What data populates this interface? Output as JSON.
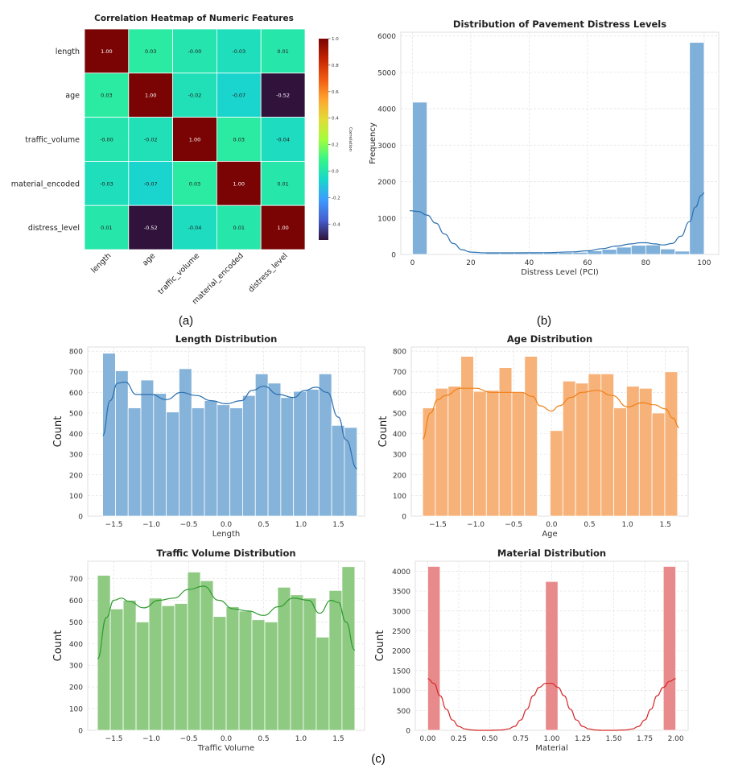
{
  "figure_labels": {
    "a": "(a)",
    "b": "(b)",
    "c": "(c)"
  },
  "chart_data": [
    {
      "id": "heatmap",
      "type": "heatmap",
      "title": "Correlation Heatmap of Numeric Features",
      "row_labels": [
        "length",
        "age",
        "traffic_volume",
        "material_encoded",
        "distress_level"
      ],
      "col_labels": [
        "length",
        "age",
        "traffic_volume",
        "material_encoded",
        "distress_level"
      ],
      "values": [
        [
          1.0,
          0.03,
          -0.0,
          -0.03,
          0.01
        ],
        [
          0.03,
          1.0,
          -0.02,
          -0.07,
          -0.52
        ],
        [
          -0.0,
          -0.02,
          1.0,
          0.03,
          -0.04
        ],
        [
          -0.03,
          -0.07,
          0.03,
          1.0,
          0.01
        ],
        [
          0.01,
          -0.52,
          -0.04,
          0.01,
          1.0
        ]
      ],
      "cell_text": [
        [
          "1.00",
          "0.03",
          "-0.00",
          "-0.03",
          "0.01"
        ],
        [
          "0.03",
          "1.00",
          "-0.02",
          "-0.07",
          "-0.52"
        ],
        [
          "-0.00",
          "-0.02",
          "1.00",
          "0.03",
          "-0.04"
        ],
        [
          "-0.03",
          "-0.07",
          "0.03",
          "1.00",
          "0.01"
        ],
        [
          "0.01",
          "-0.52",
          "-0.04",
          "0.01",
          "1.00"
        ]
      ],
      "colorbar": {
        "label": "Correlation",
        "min": -0.52,
        "max": 1.0,
        "ticks": [
          "1.0",
          "0.8",
          "0.6",
          "0.4",
          "0.2",
          "0.0",
          "-0.2",
          "-0.4"
        ],
        "tick_values": [
          1.0,
          0.8,
          0.6,
          0.4,
          0.2,
          0.0,
          -0.2,
          -0.4
        ]
      },
      "colormap": "turbo"
    },
    {
      "id": "distress",
      "type": "bar",
      "title": "Distribution of Pavement Distress Levels",
      "xlabel": "Distress Level (PCI)",
      "ylabel": "Frequency",
      "xlim": [
        -4,
        105
      ],
      "ylim": [
        0,
        6100
      ],
      "xticks": [
        0,
        20,
        40,
        60,
        80,
        100
      ],
      "yticks": [
        0,
        1000,
        2000,
        3000,
        4000,
        5000,
        6000
      ],
      "bins": [
        [
          0,
          5,
          4180
        ],
        [
          5,
          10,
          0
        ],
        [
          10,
          15,
          0
        ],
        [
          15,
          20,
          0
        ],
        [
          20,
          25,
          30
        ],
        [
          25,
          30,
          40
        ],
        [
          30,
          35,
          40
        ],
        [
          35,
          40,
          40
        ],
        [
          40,
          45,
          40
        ],
        [
          45,
          50,
          50
        ],
        [
          50,
          55,
          55
        ],
        [
          55,
          60,
          60
        ],
        [
          60,
          65,
          100
        ],
        [
          65,
          70,
          140
        ],
        [
          70,
          75,
          200
        ],
        [
          75,
          80,
          250
        ],
        [
          80,
          85,
          260
        ],
        [
          85,
          90,
          150
        ],
        [
          90,
          95,
          90
        ],
        [
          95,
          100,
          5820
        ]
      ],
      "kde": [
        [
          -1,
          1200
        ],
        [
          2,
          1180
        ],
        [
          5,
          1080
        ],
        [
          8,
          860
        ],
        [
          11,
          560
        ],
        [
          14,
          300
        ],
        [
          17,
          130
        ],
        [
          20,
          65
        ],
        [
          25,
          45
        ],
        [
          35,
          45
        ],
        [
          45,
          48
        ],
        [
          55,
          70
        ],
        [
          60,
          100
        ],
        [
          65,
          160
        ],
        [
          70,
          230
        ],
        [
          75,
          290
        ],
        [
          78,
          320
        ],
        [
          80,
          320
        ],
        [
          83,
          290
        ],
        [
          86,
          260
        ],
        [
          89,
          300
        ],
        [
          92,
          500
        ],
        [
          95,
          900
        ],
        [
          97,
          1300
        ],
        [
          99,
          1620
        ],
        [
          100,
          1690
        ]
      ],
      "color": "#7fb0d9",
      "line_color": "#2a6fb0"
    },
    {
      "id": "length",
      "type": "bar",
      "title": "Length Distribution",
      "xlabel": "Length",
      "ylabel": "Count",
      "xlim": [
        -1.85,
        1.85
      ],
      "ylim": [
        0,
        820
      ],
      "xticks": [
        -1.5,
        -1.0,
        -0.5,
        0.0,
        0.5,
        1.0,
        1.5
      ],
      "xtick_labels": [
        "−1.5",
        "−1.0",
        "−0.5",
        "0.0",
        "0.5",
        "1.0",
        "1.5"
      ],
      "yticks": [
        0,
        100,
        200,
        300,
        400,
        500,
        600,
        700,
        800
      ],
      "range": [
        -1.65,
        1.75
      ],
      "counts": [
        790,
        705,
        525,
        660,
        595,
        505,
        715,
        525,
        560,
        540,
        525,
        585,
        690,
        645,
        575,
        605,
        615,
        690,
        440,
        430
      ],
      "kde_x": [
        -1.65,
        -1.55,
        -1.45,
        -1.35,
        -1.2,
        -1.0,
        -0.8,
        -0.6,
        -0.4,
        -0.2,
        0.0,
        0.2,
        0.35,
        0.5,
        0.7,
        0.9,
        1.05,
        1.2,
        1.35,
        1.5,
        1.6,
        1.75
      ],
      "kde_y": [
        390,
        560,
        645,
        650,
        590,
        590,
        565,
        600,
        585,
        560,
        545,
        560,
        610,
        630,
        590,
        575,
        610,
        625,
        600,
        480,
        370,
        230
      ],
      "color": "#86b3d9",
      "line_color": "#2a6fb0"
    },
    {
      "id": "age",
      "type": "bar",
      "title": "Age Distribution",
      "xlabel": "Age",
      "ylabel": "Count",
      "xlim": [
        -1.85,
        1.8
      ],
      "ylim": [
        0,
        820
      ],
      "xticks": [
        -1.5,
        -1.0,
        -0.5,
        0.0,
        0.5,
        1.0,
        1.5
      ],
      "xtick_labels": [
        "−1.5",
        "−1.0",
        "−0.5",
        "0.0",
        "0.5",
        "1.0",
        "1.5"
      ],
      "yticks": [
        0,
        100,
        200,
        300,
        400,
        500,
        600,
        700,
        800
      ],
      "range": [
        -1.7,
        1.66
      ],
      "counts": [
        525,
        620,
        630,
        775,
        605,
        610,
        720,
        600,
        775,
        0,
        415,
        655,
        645,
        690,
        690,
        525,
        630,
        620,
        500,
        700
      ],
      "kde_x": [
        -1.7,
        -1.6,
        -1.5,
        -1.4,
        -1.2,
        -1.0,
        -0.8,
        -0.6,
        -0.4,
        -0.25,
        -0.15,
        0.0,
        0.1,
        0.25,
        0.4,
        0.6,
        0.8,
        1.0,
        1.2,
        1.35,
        1.5,
        1.6,
        1.68
      ],
      "kde_y": [
        375,
        500,
        565,
        585,
        620,
        620,
        600,
        600,
        600,
        580,
        535,
        510,
        535,
        575,
        600,
        610,
        585,
        530,
        550,
        540,
        520,
        475,
        430
      ],
      "color": "#f7b27a",
      "line_color": "#f07f13"
    },
    {
      "id": "traffic",
      "type": "bar",
      "title": "Traffic Volume Distribution",
      "xlabel": "Traffic Volume",
      "ylabel": "Count",
      "xlim": [
        -1.85,
        1.85
      ],
      "ylim": [
        0,
        780
      ],
      "xticks": [
        -1.5,
        -1.0,
        -0.5,
        0.0,
        0.5,
        1.0,
        1.5
      ],
      "xtick_labels": [
        "−1.5",
        "−1.0",
        "−0.5",
        "0.0",
        "0.5",
        "1.0",
        "1.5"
      ],
      "yticks": [
        0,
        100,
        200,
        300,
        400,
        500,
        600,
        700
      ],
      "range": [
        -1.72,
        1.72
      ],
      "counts": [
        715,
        560,
        600,
        500,
        610,
        575,
        585,
        730,
        690,
        525,
        570,
        550,
        510,
        500,
        660,
        625,
        610,
        430,
        645,
        755
      ],
      "kde_x": [
        -1.72,
        -1.6,
        -1.5,
        -1.4,
        -1.3,
        -1.1,
        -0.9,
        -0.7,
        -0.5,
        -0.3,
        -0.1,
        0.1,
        0.3,
        0.5,
        0.7,
        0.9,
        1.1,
        1.25,
        1.4,
        1.5,
        1.6,
        1.72
      ],
      "kde_y": [
        330,
        520,
        600,
        610,
        595,
        565,
        600,
        610,
        650,
        665,
        600,
        560,
        550,
        530,
        570,
        610,
        600,
        540,
        600,
        590,
        500,
        370
      ],
      "color": "#8fca83",
      "line_color": "#2e9a2e"
    },
    {
      "id": "material",
      "type": "bar",
      "title": "Material Distribution",
      "xlabel": "Material",
      "ylabel": "Count",
      "xlim": [
        -0.1,
        2.1
      ],
      "ylim": [
        0,
        4250
      ],
      "xticks": [
        0.0,
        0.25,
        0.5,
        0.75,
        1.0,
        1.25,
        1.5,
        1.75,
        2.0
      ],
      "xtick_labels": [
        "0.00",
        "0.25",
        "0.50",
        "0.75",
        "1.00",
        "1.25",
        "1.50",
        "1.75",
        "2.00"
      ],
      "yticks": [
        0,
        500,
        1000,
        1500,
        2000,
        2500,
        3000,
        3500,
        4000
      ],
      "bars": [
        [
          0.0,
          0.1,
          4120
        ],
        [
          0.95,
          1.05,
          3740
        ],
        [
          1.9,
          2.0,
          4120
        ]
      ],
      "kde_x": [
        0.0,
        0.05,
        0.1,
        0.15,
        0.2,
        0.25,
        0.3,
        0.35,
        0.4,
        0.5,
        0.6,
        0.65,
        0.7,
        0.75,
        0.8,
        0.85,
        0.9,
        0.95,
        1.0,
        1.05,
        1.1,
        1.15,
        1.2,
        1.25,
        1.3,
        1.35,
        1.4,
        1.5,
        1.6,
        1.65,
        1.7,
        1.75,
        1.8,
        1.85,
        1.9,
        1.95,
        2.0
      ],
      "kde_y": [
        1300,
        1180,
        870,
        530,
        260,
        100,
        35,
        10,
        0,
        0,
        10,
        35,
        100,
        260,
        530,
        870,
        1080,
        1180,
        1180,
        1080,
        870,
        530,
        260,
        100,
        35,
        10,
        0,
        0,
        10,
        35,
        100,
        260,
        530,
        870,
        1080,
        1230,
        1300
      ],
      "color": "#e88a8c",
      "line_color": "#d62728"
    }
  ]
}
